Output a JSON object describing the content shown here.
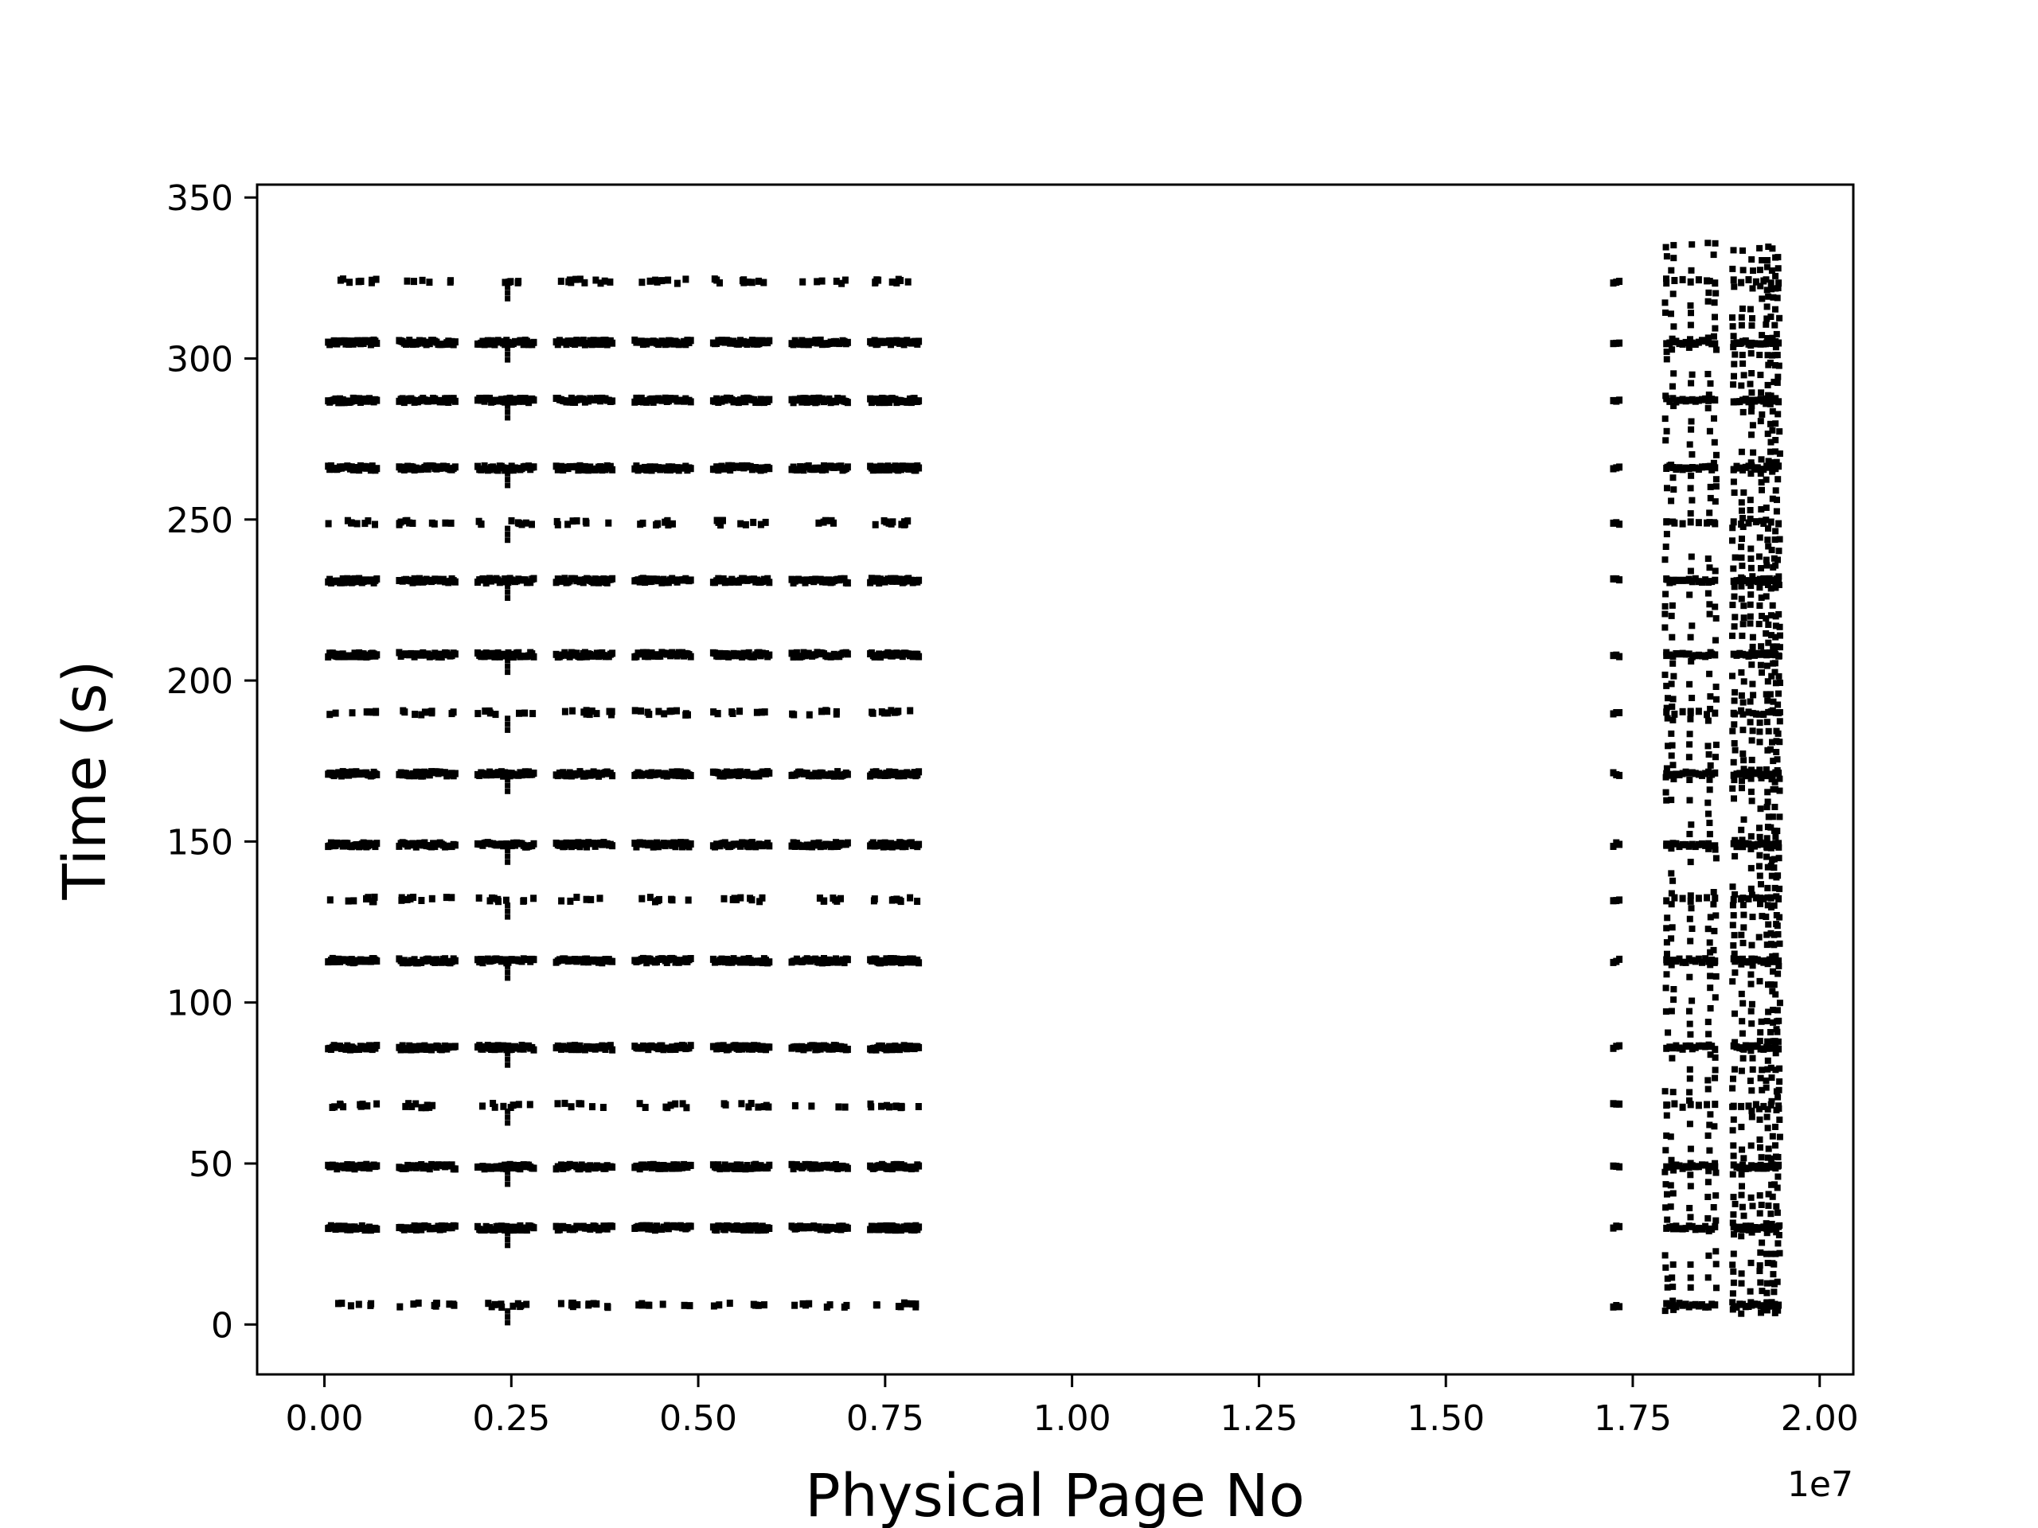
{
  "chart_data": {
    "type": "scatter",
    "title": "",
    "xlabel": "Physical Page No",
    "ylabel": "Time (s)",
    "x_offset_label": "1e7",
    "xlim": [
      -0.09,
      2.045
    ],
    "ylim": [
      -15.5,
      354
    ],
    "xticks": [
      0.0,
      0.25,
      0.5,
      0.75,
      1.0,
      1.25,
      1.5,
      1.75,
      2.0
    ],
    "xtick_labels": [
      "0.00",
      "0.25",
      "0.50",
      "0.75",
      "1.00",
      "1.25",
      "1.50",
      "1.75",
      "2.00"
    ],
    "yticks": [
      0,
      50,
      100,
      150,
      200,
      250,
      300,
      350
    ],
    "ytick_labels": [
      "0",
      "50",
      "100",
      "150",
      "200",
      "250",
      "300",
      "350"
    ],
    "grid": false,
    "marker_color": "#000000",
    "snapshot_times": [
      6,
      30,
      49,
      68,
      86,
      113,
      132,
      149,
      171,
      190,
      208,
      231,
      249,
      266,
      287,
      305,
      324
    ],
    "dense_snapshot_times": [
      30,
      49,
      86,
      113,
      149,
      171,
      208,
      231,
      266,
      287,
      305
    ],
    "left_clusters": [
      {
        "x_start": 0.005,
        "x_end": 0.07
      },
      {
        "x_start": 0.1,
        "x_end": 0.175
      },
      {
        "x_start": 0.205,
        "x_end": 0.28
      },
      {
        "x_start": 0.31,
        "x_end": 0.385
      },
      {
        "x_start": 0.415,
        "x_end": 0.49
      },
      {
        "x_start": 0.52,
        "x_end": 0.595
      },
      {
        "x_start": 0.625,
        "x_end": 0.7
      },
      {
        "x_start": 0.73,
        "x_end": 0.795
      }
    ],
    "spike_x": 0.245,
    "right_clusters": [
      {
        "x_start": 1.724,
        "x_end": 1.732,
        "max_time": 324
      },
      {
        "x_start": 1.795,
        "x_end": 1.86,
        "max_time": 336
      },
      {
        "x_start": 1.885,
        "x_end": 1.945,
        "max_time": 336
      }
    ]
  }
}
